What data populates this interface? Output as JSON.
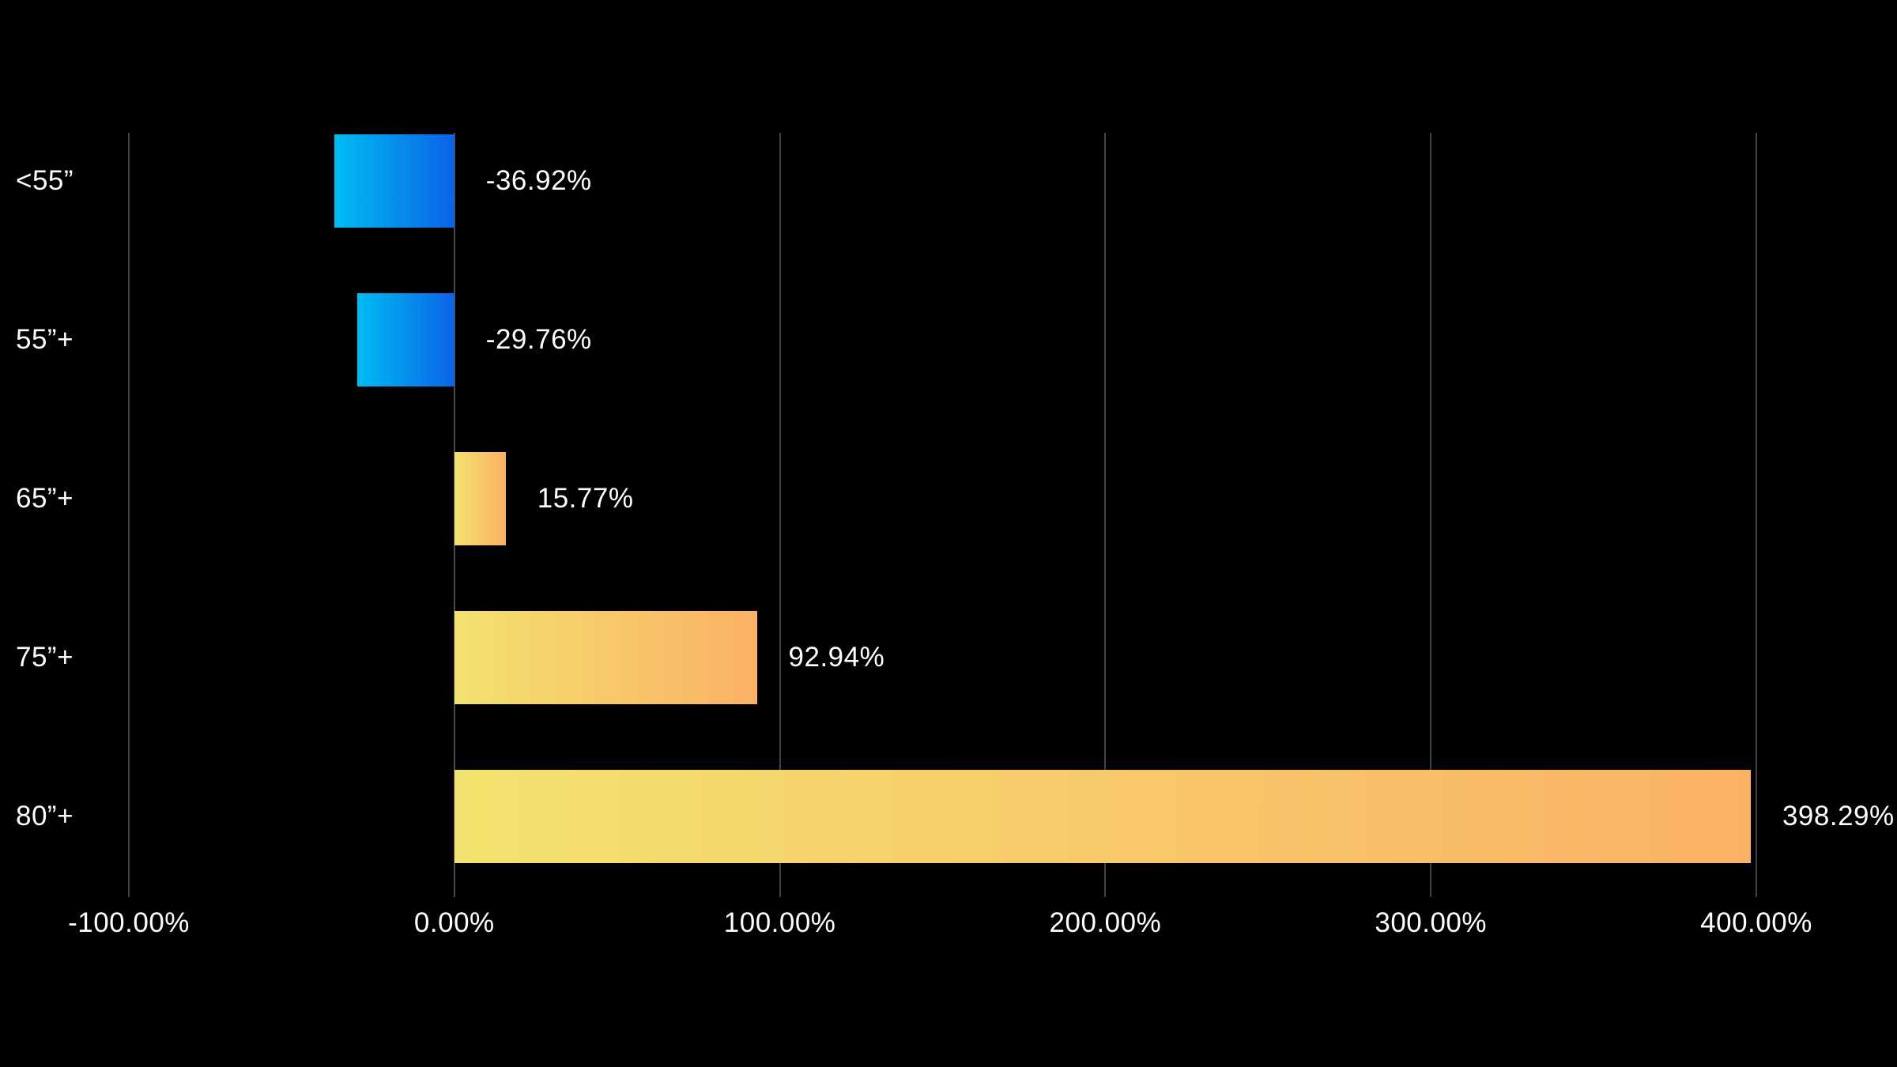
{
  "chart_data": {
    "type": "bar",
    "orientation": "horizontal",
    "title": "",
    "categories": [
      "<55”",
      "55”+",
      "65”+",
      "75”+",
      "80”+"
    ],
    "values": [
      -36.92,
      -29.76,
      15.77,
      92.94,
      398.29
    ],
    "value_labels": [
      "-36.92%",
      "-29.76%",
      "15.77%",
      "92.94%",
      "398.29%"
    ],
    "x_axis": {
      "min": -100,
      "max": 400,
      "ticks": [
        -100,
        0,
        100,
        200,
        300,
        400
      ],
      "tick_labels": [
        "-100.00%",
        "0.00%",
        "100.00%",
        "200.00%",
        "300.00%",
        "400.00%"
      ]
    },
    "grid": "vertical-gridlines-on",
    "legend": "none",
    "colors": {
      "background": "#000000",
      "text": "#FFFFFF",
      "gridline": "#424242",
      "negative_bar_gradient_start": "#00BCF2",
      "negative_bar_gradient_end": "#0B63E8",
      "positive_bar_gradient_start": "#F3E26E",
      "positive_bar_gradient_end": "#FBB164"
    }
  }
}
